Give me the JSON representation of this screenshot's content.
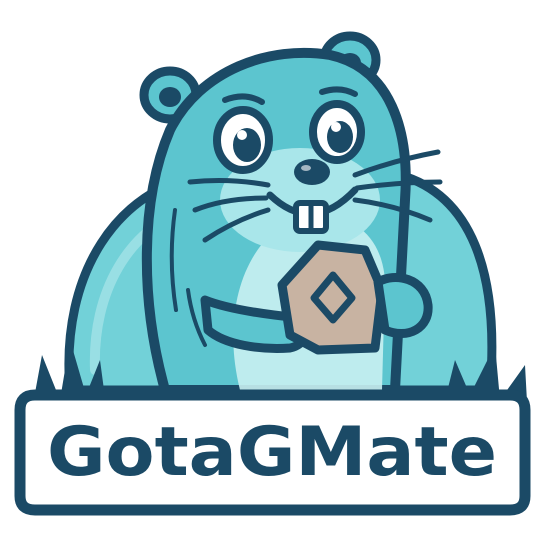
{
  "logo": {
    "brand_name": "GotaGMate",
    "mascot": "gopher-mascot",
    "held_item": "gem-tile",
    "colors": {
      "outline": "#1b4a66",
      "body": "#5cc5cf",
      "body_light": "#a9e6ea",
      "belly": "#c9eff1",
      "hill": "#72d1d8",
      "gem_tile": "#c8b3a2",
      "banner_fill": "#ffffff",
      "grass": "#1b4a66"
    }
  }
}
